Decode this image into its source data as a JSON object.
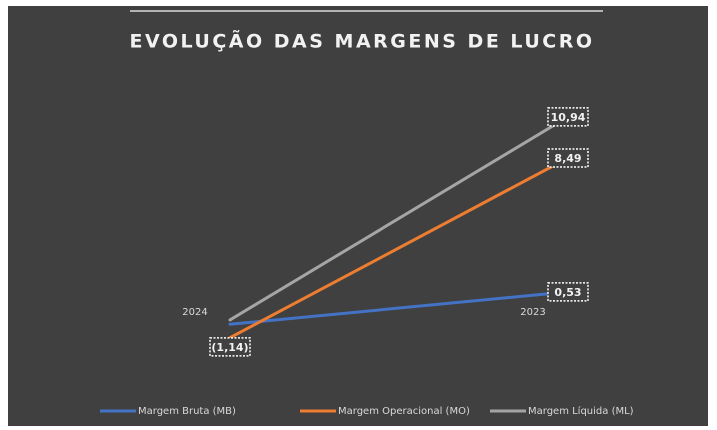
{
  "chart_data": {
    "type": "line",
    "title": "EVOLUÇÃO DAS MARGENS DE LUCRO",
    "categories": [
      "2024",
      "2023"
    ],
    "series": [
      {
        "name": "Margem Bruta (MB)",
        "color": "#4472c4",
        "values": [
          -1.4,
          0.53
        ],
        "value_labels": [
          null,
          "0,53"
        ]
      },
      {
        "name": "Margem Operacional (MO)",
        "color": "#ed7d31",
        "values": [
          -2.2,
          8.49
        ],
        "value_labels": [
          null,
          "8,49"
        ]
      },
      {
        "name": "Margem Líquida (ML)",
        "color": "#a5a5a5",
        "values": [
          -1.14,
          10.94
        ],
        "value_labels": [
          "(1,14)",
          "10,94"
        ]
      }
    ],
    "ylim": [
      -4,
      12
    ],
    "legend": "bottom"
  }
}
